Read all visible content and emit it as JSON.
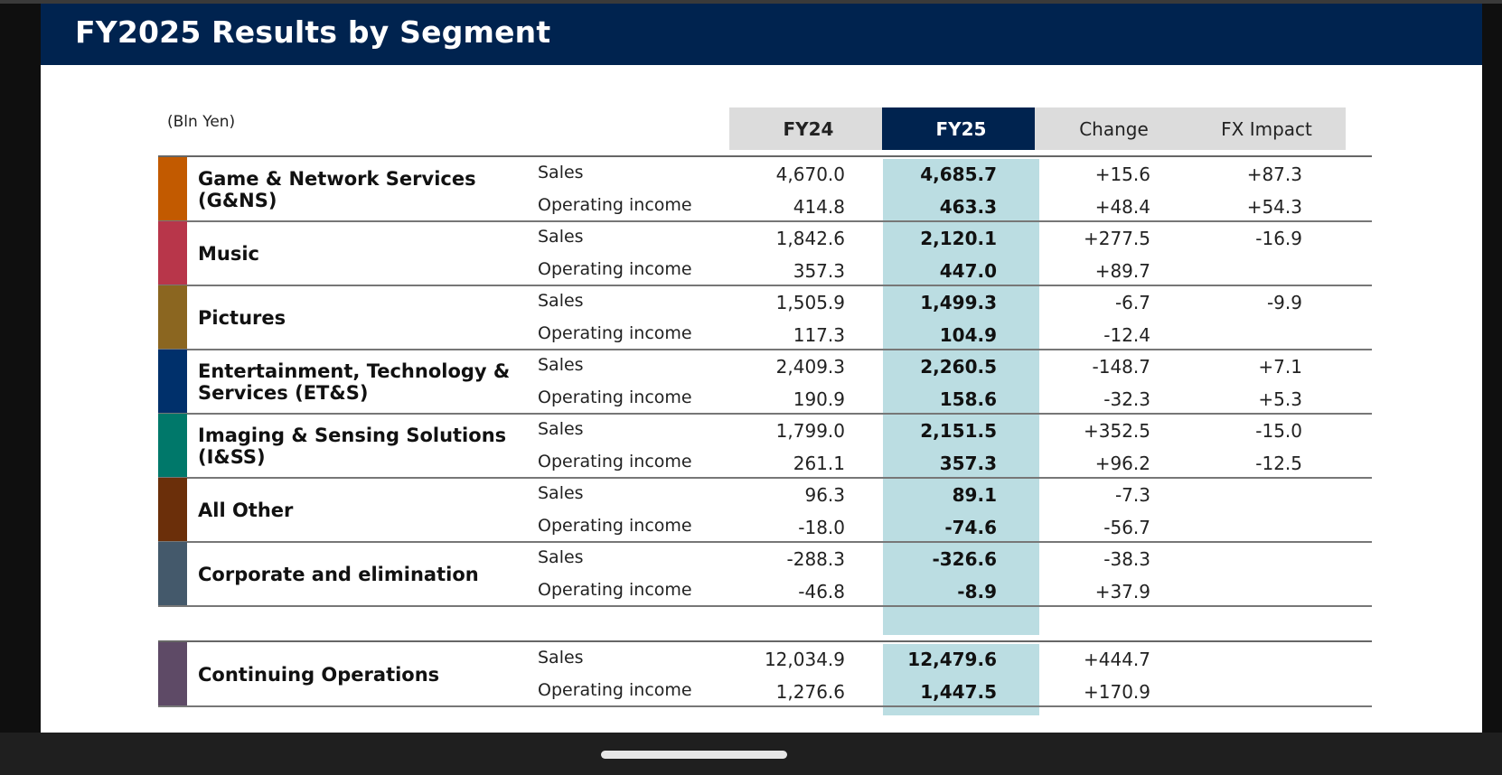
{
  "title": "FY2025 Results by Segment",
  "unit": "(Bln Yen)",
  "columns": [
    "FY24",
    "FY25",
    "Change",
    "FX Impact"
  ],
  "colors": {
    "header": "#00234f",
    "fy25_band": "#bbdde2"
  },
  "segments": [
    {
      "name": "Game & Network Services\n(G&NS)",
      "color": "#c25a00",
      "rows": [
        {
          "metric": "Sales",
          "fy24": "4,670.0",
          "fy25": "4,685.7",
          "change": "+15.6",
          "fx": "+87.3"
        },
        {
          "metric": "Operating income",
          "fy24": "414.8",
          "fy25": "463.3",
          "change": "+48.4",
          "fx": "+54.3"
        }
      ]
    },
    {
      "name": "Music",
      "color": "#b8364a",
      "rows": [
        {
          "metric": "Sales",
          "fy24": "1,842.6",
          "fy25": "2,120.1",
          "change": "+277.5",
          "fx": "-16.9"
        },
        {
          "metric": "Operating income",
          "fy24": "357.3",
          "fy25": "447.0",
          "change": "+89.7",
          "fx": ""
        }
      ]
    },
    {
      "name": "Pictures",
      "color": "#8b6620",
      "rows": [
        {
          "metric": "Sales",
          "fy24": "1,505.9",
          "fy25": "1,499.3",
          "change": "-6.7",
          "fx": "-9.9"
        },
        {
          "metric": "Operating income",
          "fy24": "117.3",
          "fy25": "104.9",
          "change": "-12.4",
          "fx": ""
        }
      ]
    },
    {
      "name": "Entertainment, Technology &\nServices (ET&S)",
      "color": "#00306b",
      "rows": [
        {
          "metric": "Sales",
          "fy24": "2,409.3",
          "fy25": "2,260.5",
          "change": "-148.7",
          "fx": "+7.1"
        },
        {
          "metric": "Operating income",
          "fy24": "190.9",
          "fy25": "158.6",
          "change": "-32.3",
          "fx": "+5.3"
        }
      ]
    },
    {
      "name": "Imaging & Sensing Solutions\n(I&SS)",
      "color": "#00786a",
      "rows": [
        {
          "metric": "Sales",
          "fy24": "1,799.0",
          "fy25": "2,151.5",
          "change": "+352.5",
          "fx": "-15.0"
        },
        {
          "metric": "Operating income",
          "fy24": "261.1",
          "fy25": "357.3",
          "change": "+96.2",
          "fx": "-12.5"
        }
      ]
    },
    {
      "name": "All Other",
      "color": "#6b2f0a",
      "rows": [
        {
          "metric": "Sales",
          "fy24": "96.3",
          "fy25": "89.1",
          "change": "-7.3",
          "fx": ""
        },
        {
          "metric": "Operating income",
          "fy24": "-18.0",
          "fy25": "-74.6",
          "change": "-56.7",
          "fx": ""
        }
      ]
    },
    {
      "name": "Corporate and elimination",
      "color": "#44596b",
      "rows": [
        {
          "metric": "Sales",
          "fy24": "-288.3",
          "fy25": "-326.6",
          "change": "-38.3",
          "fx": ""
        },
        {
          "metric": "Operating income",
          "fy24": "-46.8",
          "fy25": "-8.9",
          "change": "+37.9",
          "fx": ""
        }
      ]
    }
  ],
  "total": {
    "name": "Continuing Operations",
    "color": "#5e4a66",
    "rows": [
      {
        "metric": "Sales",
        "fy24": "12,034.9",
        "fy25": "12,479.6",
        "change": "+444.7",
        "fx": ""
      },
      {
        "metric": "Operating income",
        "fy24": "1,276.6",
        "fy25": "1,447.5",
        "change": "+170.9",
        "fx": ""
      }
    ]
  }
}
